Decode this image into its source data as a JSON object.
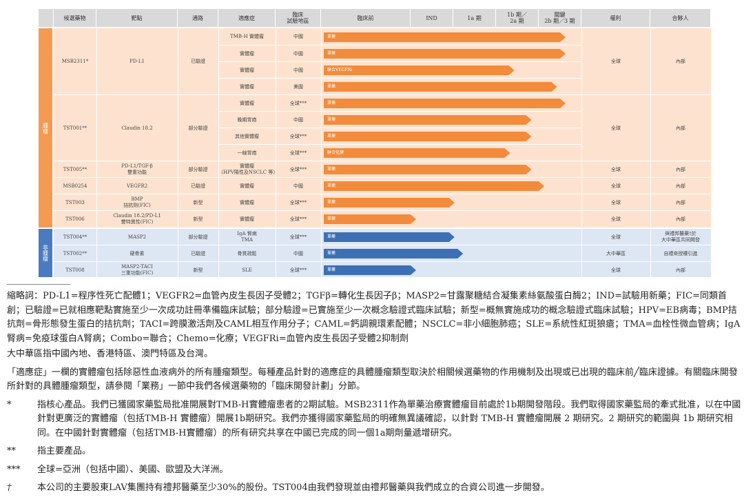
{
  "headers": [
    "候選藥物",
    "靶點",
    "通路",
    "適應症",
    "臨床\n試驗地區",
    "臨床前",
    "IND",
    "1a 期",
    "1b 期／\n2a 期",
    "關鍵\n2b 期／3 期",
    "權利",
    "合夥人"
  ],
  "groups": [
    {
      "label": "腫瘤",
      "color": "#f59a52"
    },
    {
      "label": "非腫瘤",
      "color": "#4a7bc0"
    }
  ],
  "rows": [
    {
      "candidate": "MSB2311*",
      "target": "PD-L1",
      "pathway": "已驗證",
      "indication": "TMB-H 實體瘤",
      "region": "中國",
      "stage": 4.5,
      "bar_label": "單藥",
      "rights": "全球",
      "partner": "內部"
    },
    {
      "candidate": "",
      "target": "",
      "pathway": "",
      "indication": "實體瘤",
      "region": "中國",
      "stage": 4.5,
      "bar_label": "單藥",
      "rights": "",
      "partner": ""
    },
    {
      "candidate": "",
      "target": "",
      "pathway": "",
      "indication": "實體瘤",
      "region": "中國",
      "stage": 3.3,
      "bar_label": "聯合VEGFRi",
      "rights": "",
      "partner": ""
    },
    {
      "candidate": "",
      "target": "",
      "pathway": "",
      "indication": "實體瘤",
      "region": "美國",
      "stage": 4.3,
      "bar_label": "單藥",
      "rights": "",
      "partner": ""
    },
    {
      "candidate": "TST001**",
      "target": "Claudin 18.2",
      "pathway": "部分驗證",
      "indication": "實體瘤",
      "region": "全球***",
      "stage": 4.5,
      "bar_label": "單藥",
      "rights": "全球",
      "partner": "內部"
    },
    {
      "candidate": "",
      "target": "",
      "pathway": "",
      "indication": "晚期胃癌",
      "region": "中國",
      "stage": 3.7,
      "bar_label": "單藥",
      "rights": "",
      "partner": ""
    },
    {
      "candidate": "",
      "target": "",
      "pathway": "",
      "indication": "其他實體瘤",
      "region": "全球***",
      "stage": 3.7,
      "bar_label": "單藥",
      "rights": "",
      "partner": ""
    },
    {
      "candidate": "",
      "target": "",
      "pathway": "",
      "indication": "一線胃癌",
      "region": "全球***",
      "stage": 3.2,
      "bar_label": "聯合化療",
      "rights": "",
      "partner": ""
    },
    {
      "candidate": "TST005**",
      "target": "PD-L1/TGF-β\n雙重功能",
      "pathway": "部分驗證",
      "indication": "實體瘤\n（HPV陽性及NSCLC 等）",
      "region": "全球***",
      "stage": 3.7,
      "bar_label": "單藥",
      "rights": "全球",
      "partner": "內部"
    },
    {
      "candidate": "MSB0254",
      "target": "VEGFR2",
      "pathway": "已驗證",
      "indication": "實體瘤",
      "region": "中國",
      "stage": 4.0,
      "bar_label": "單藥",
      "rights": "全球",
      "partner": "內部"
    },
    {
      "candidate": "TST003",
      "target": "BMP\n拮抗劑(FIC)",
      "pathway": "新型",
      "indication": "實體瘤",
      "region": "全球***",
      "stage": 1.9,
      "bar_label": "單藥",
      "rights": "全球",
      "partner": "內部"
    },
    {
      "candidate": "TST006",
      "target": "Claudin 18.2/PD-L1\n雙特異性(FIC)",
      "pathway": "新型",
      "indication": "實體瘤",
      "region": "全球***",
      "stage": 1.0,
      "bar_label": "單藥",
      "rights": "全球",
      "partner": "內部"
    },
    {
      "candidate": "TST004**",
      "target": "MASP2",
      "pathway": "部分驗證",
      "indication": "IgA 腎病\nTMA",
      "region": "全球***",
      "stage": 1.9,
      "bar_label": "單藥",
      "rights": "全球",
      "partner": "與禮邦醫藥†於\n大中華區共同開發"
    },
    {
      "candidate": "TST002**",
      "target": "硬骨素",
      "pathway": "已驗證",
      "indication": "骨質疏鬆",
      "region": "中國",
      "stage": 2.1,
      "bar_label": "單藥",
      "rights": "大中華區",
      "partner": "自禮來授權引進"
    },
    {
      "candidate": "TST008",
      "target": "MASP2-TACI\n三重功能(FIC)",
      "pathway": "新型",
      "indication": "SLE",
      "region": "全球***",
      "stage": 1.0,
      "bar_label": "單藥",
      "rights": "全球",
      "partner": "內部"
    }
  ],
  "notes": {
    "abbrev": "縮略詞：PD-L1=程序性死亡配體1；VEGFR2=血管內皮生長因子受體2；TGFβ=轉化生長因子β；MASP2=甘露聚糖結合凝集素絲氨酸蛋白酶2；IND=試驗用新藥；FIC=同類首創；已驗證=已就相應靶點實施至少一次成功註冊準備臨床試驗；部分驗證=已實施至少一次概念驗證式臨床試驗；新型=概無實施成功的概念驗證式臨床試驗；HPV=EB病毒；BMP拮抗劑=骨形態發生蛋白的拮抗劑；TACI=跨膜激活劑及CAML相互作用分子；CAML=鈣調親環素配體；NSCLC=非小細胞肺癌；SLE=系統性紅斑狼瘡；TMA=血栓性微血管病；IgA腎病=免疫球蛋白A腎病；Combo=聯合；Chemo=化療；VEGFRi=血管內皮生長因子受體2抑制劑",
    "greater_china": "大中華區指中國內地、香港特區、澳門特區及台灣。",
    "solid_tumor": "「適應症」一欄的實體瘤包括除惡性血液病外的所有腫瘤類型。每種產品針對的適應症的具體腫瘤類型取決於相關候選藥物的作用機制及出現或已出現的臨床前╱臨床證據。有關臨床開發所針對的具體腫瘤類型，請參閱「業務」一節中我們各候選藥物的「臨床開發計劃」分節。",
    "footnotes": [
      {
        "mark": "*",
        "text": "指核心產品。我們已獲國家藥監局批准開展對TMB-H實體瘤患者的2期試驗。MSB2311作為單藥治療實體瘤目前處於1b期開發階段。我們取得國家藥監局的牽式批准，以在中國針對更廣泛的實體瘤（包括TMB-H 實體瘤）開展1b期研究。我們亦獲得國家藥監局的明確無異議確認，以針對 TMB-H 實體瘤開展 2 期研究。2 期研究的範圍與 1b 期研究相同。在中國針對實體瘤（包括TMB-H實體瘤）的所有研究共享在中國已完成的同一個1a期劑量遞增研究。"
      },
      {
        "mark": "**",
        "text": "指主要產品。"
      },
      {
        "mark": "***",
        "text": "全球=亞洲（包括中國）、美國、歐盟及大洋洲。"
      },
      {
        "mark": "†",
        "text": "本公司的主要股東LAV集團持有禮邦醫藥至少30%的股份。TST004由我們發現並由禮邦醫藥與我們成立的合資公司進一步開發。"
      }
    ]
  }
}
